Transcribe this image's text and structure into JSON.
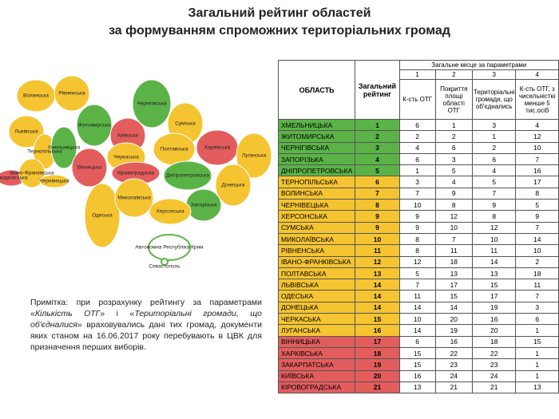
{
  "header": {
    "title_line1": "Загальний рейтинг областей",
    "title_line2": "за формуванням спроможних територіальних громад"
  },
  "table": {
    "col_region": "ОБЛАСТЬ",
    "col_rating": "Загальний рейтинг",
    "group_header": "Загальне місце за параметрами",
    "param_numbers": [
      "1",
      "2",
      "3",
      "4"
    ],
    "param_names": [
      "К-сть ОТГ",
      "Покриття площі області ОТГ",
      "Територіальні громади, що об'єднались",
      "К-сть ОТГ, з чисельністю менше 5 тис.осіб"
    ],
    "rows": [
      [
        "ХМЕЛЬНИЦЬКА",
        1,
        6,
        1,
        3,
        4
      ],
      [
        "ЖИТОМИРСЬКА",
        2,
        2,
        2,
        1,
        12
      ],
      [
        "ЧЕРНІГІВСЬКА",
        3,
        4,
        6,
        2,
        10
      ],
      [
        "ЗАПОРІЗЬКА",
        4,
        6,
        3,
        6,
        7
      ],
      [
        "ДНІПРОПЕТРОВСЬКА",
        5,
        1,
        5,
        4,
        16
      ],
      [
        "ТЕРНОПІЛЬСЬКА",
        6,
        3,
        4,
        5,
        17
      ],
      [
        "ВОЛИНСЬКА",
        7,
        7,
        9,
        7,
        8
      ],
      [
        "ЧЕРНІВЕЦЬКА",
        8,
        10,
        8,
        9,
        5
      ],
      [
        "ХЕРСОНСЬКА",
        9,
        9,
        12,
        8,
        9
      ],
      [
        "СУМСЬКА",
        9,
        9,
        10,
        12,
        7
      ],
      [
        "МИКОЛАЇВСЬКА",
        10,
        8,
        7,
        10,
        14
      ],
      [
        "РІВНЕНСЬКА",
        11,
        8,
        11,
        11,
        10
      ],
      [
        "ІВАНО-ФРАНКІВСЬКА",
        12,
        12,
        18,
        14,
        2
      ],
      [
        "ПОЛТАВСЬКА",
        13,
        5,
        13,
        13,
        18
      ],
      [
        "ЛЬВІВСЬКА",
        14,
        7,
        17,
        15,
        11
      ],
      [
        "ОДЕСЬКА",
        14,
        11,
        15,
        17,
        7
      ],
      [
        "ДОНЕЦЬКА",
        14,
        14,
        14,
        19,
        3
      ],
      [
        "ЧЕРКАСЬКА",
        15,
        10,
        20,
        16,
        6
      ],
      [
        "ЛУГАНСЬКА",
        16,
        14,
        19,
        20,
        1
      ],
      [
        "ВІННИЦЬКА",
        17,
        6,
        16,
        18,
        15
      ],
      [
        "ХАРКІВСЬКА",
        18,
        15,
        22,
        22,
        1
      ],
      [
        "ЗАКАРПАТСЬКА",
        19,
        15,
        23,
        23,
        1
      ],
      [
        "КИЇВСЬКА",
        20,
        16,
        24,
        24,
        1
      ],
      [
        "КІРОВОГРАДСЬКА",
        21,
        13,
        21,
        21,
        13
      ]
    ],
    "row_colors": [
      "#5bb347",
      "#5bb347",
      "#5bb347",
      "#5bb347",
      "#5bb347",
      "#f5c431",
      "#f5c431",
      "#f5c431",
      "#f5c431",
      "#f5c431",
      "#f5c431",
      "#f5c431",
      "#f5c431",
      "#f5c431",
      "#f5c431",
      "#f5c431",
      "#f5c431",
      "#f5c431",
      "#f5c431",
      "#e35d5d",
      "#e35d5d",
      "#e35d5d",
      "#e35d5d",
      "#e35d5d"
    ]
  },
  "map": {
    "labels": [
      "Волинська",
      "Рівненська",
      "Житомирська",
      "Чернігівська",
      "Сумська",
      "Київська",
      "Львівська",
      "Тернопільська",
      "Хмельницька",
      "Вінницька",
      "Черкаська",
      "Полтавська",
      "Харківська",
      "Луганська",
      "Закарпатська",
      "Івано-Франківська",
      "Чернівецька",
      "Кіровоградська",
      "Дніпропетровська",
      "Донецька",
      "Одеська",
      "Миколаївська",
      "Запорізька",
      "Херсонська",
      "Автономна Республіка Крим",
      "Севастополь"
    ]
  },
  "note": {
    "parts": [
      "Примітка: при розрахунку рейтингу за параметрами «",
      "Кількість ОТГ",
      "» і «",
      "Територіальні громади, що об'єдналися",
      "» враховувались дані тих громад, документи яких станом на 16.06.2017 року перебувають в ЦВК для призначення перших виборів."
    ]
  }
}
